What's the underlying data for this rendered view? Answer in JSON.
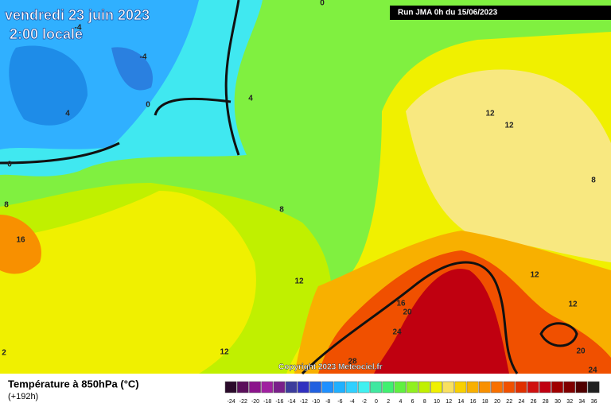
{
  "header": {
    "title": "vendredi 23 juin 2023",
    "time": "2:00 locale",
    "run": "Run JMA 0h du 15/06/2023"
  },
  "copyright": "Copyright 2023 Meteociel.fr",
  "footer": {
    "title": "Température à 850hPa (°C)",
    "lead": "(+192h)"
  },
  "contour_labels": [
    0,
    -4,
    -4,
    4,
    0,
    4,
    0,
    8,
    16,
    8,
    12,
    12,
    8,
    12,
    16,
    20,
    24,
    12,
    28,
    12,
    12,
    20,
    24,
    2
  ],
  "colorbar": {
    "labels": [
      -24,
      -22,
      -20,
      -18,
      -16,
      -14,
      -12,
      -10,
      -8,
      -6,
      -4,
      -2,
      0,
      2,
      4,
      6,
      8,
      10,
      12,
      14,
      16,
      18,
      20,
      22,
      24,
      26,
      28,
      30,
      32,
      34,
      36
    ],
    "colors": [
      "#2a0a2a",
      "#5a0f5a",
      "#8b138b",
      "#a020a0",
      "#7a1f8a",
      "#3c3c9c",
      "#3030c0",
      "#2060e0",
      "#1e90ff",
      "#20b0ff",
      "#30d0ff",
      "#40f0f0",
      "#40e8a0",
      "#40f070",
      "#60f040",
      "#90f020",
      "#c0f000",
      "#f0f000",
      "#f8e060",
      "#f8d000",
      "#f8b000",
      "#f89000",
      "#f87000",
      "#f05000",
      "#e03000",
      "#d01010",
      "#c00010",
      "#a00000",
      "#800000",
      "#500000",
      "#202020"
    ]
  }
}
